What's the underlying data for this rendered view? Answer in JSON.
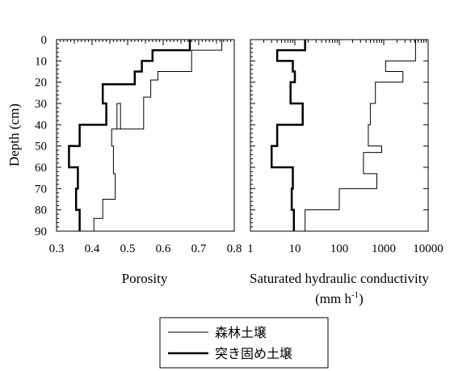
{
  "chart_data": [
    {
      "type": "line",
      "title": "",
      "xlabel": "Porosity",
      "ylabel": "Depth (cm)",
      "xscale": "linear",
      "xlim": [
        0.3,
        0.8
      ],
      "ylim": [
        90,
        0
      ],
      "x_ticks": [
        "0.3",
        "0.4",
        "0.5",
        "0.6",
        "0.7",
        "0.8"
      ],
      "y_ticks": [
        "0",
        "10",
        "20",
        "30",
        "40",
        "50",
        "60",
        "70",
        "80",
        "90"
      ],
      "series": [
        {
          "name": "森林土壌",
          "line": "thin",
          "points": [
            [
              0.765,
              0
            ],
            [
              0.765,
              5
            ],
            [
              0.68,
              5
            ],
            [
              0.68,
              15
            ],
            [
              0.585,
              15
            ],
            [
              0.585,
              19
            ],
            [
              0.565,
              19
            ],
            [
              0.565,
              27
            ],
            [
              0.545,
              27
            ],
            [
              0.545,
              42
            ],
            [
              0.47,
              42
            ],
            [
              0.47,
              30
            ],
            [
              0.48,
              30
            ],
            [
              0.48,
              42
            ],
            [
              0.455,
              42
            ],
            [
              0.455,
              50
            ],
            [
              0.46,
              50
            ],
            [
              0.46,
              63
            ],
            [
              0.465,
              63
            ],
            [
              0.465,
              75
            ],
            [
              0.43,
              75
            ],
            [
              0.43,
              84
            ],
            [
              0.405,
              84
            ],
            [
              0.405,
              90
            ]
          ]
        },
        {
          "name": "突き固め土壌",
          "line": "thick",
          "points": [
            [
              0.675,
              0
            ],
            [
              0.675,
              5
            ],
            [
              0.57,
              5
            ],
            [
              0.57,
              10
            ],
            [
              0.54,
              10
            ],
            [
              0.54,
              15
            ],
            [
              0.52,
              15
            ],
            [
              0.52,
              21
            ],
            [
              0.43,
              21
            ],
            [
              0.43,
              30
            ],
            [
              0.44,
              30
            ],
            [
              0.44,
              40
            ],
            [
              0.365,
              40
            ],
            [
              0.365,
              50
            ],
            [
              0.335,
              50
            ],
            [
              0.335,
              60
            ],
            [
              0.36,
              60
            ],
            [
              0.36,
              70
            ],
            [
              0.355,
              70
            ],
            [
              0.355,
              80
            ],
            [
              0.365,
              80
            ],
            [
              0.365,
              90
            ]
          ]
        }
      ]
    },
    {
      "type": "line",
      "title": "",
      "xlabel": "Saturated hydraulic conductivity",
      "xlabel_unit": "(mm h",
      "xlabel_unit_sup": "-1",
      "xlabel_unit_end": ")",
      "ylabel": "",
      "xscale": "log",
      "xlim": [
        1,
        10000
      ],
      "ylim": [
        90,
        0
      ],
      "x_ticks": [
        "1",
        "10",
        "100",
        "1000",
        "10000"
      ],
      "series": [
        {
          "name": "森林土壌",
          "line": "thin",
          "points": [
            [
              5200,
              0
            ],
            [
              5200,
              10
            ],
            [
              1100,
              10
            ],
            [
              1100,
              15
            ],
            [
              2700,
              15
            ],
            [
              2700,
              20
            ],
            [
              650,
              20
            ],
            [
              650,
              30
            ],
            [
              500,
              30
            ],
            [
              500,
              40
            ],
            [
              450,
              40
            ],
            [
              450,
              50
            ],
            [
              900,
              50
            ],
            [
              900,
              53
            ],
            [
              350,
              53
            ],
            [
              350,
              63
            ],
            [
              700,
              63
            ],
            [
              700,
              70
            ],
            [
              100,
              70
            ],
            [
              100,
              80
            ],
            [
              17,
              80
            ],
            [
              17,
              90
            ]
          ]
        },
        {
          "name": "突き固め土壌",
          "line": "thick",
          "points": [
            [
              17,
              0
            ],
            [
              17,
              5
            ],
            [
              4,
              5
            ],
            [
              4,
              10
            ],
            [
              9,
              10
            ],
            [
              9,
              15
            ],
            [
              10,
              15
            ],
            [
              10,
              20
            ],
            [
              8,
              20
            ],
            [
              8,
              30
            ],
            [
              15,
              30
            ],
            [
              15,
              40
            ],
            [
              4,
              40
            ],
            [
              4,
              50
            ],
            [
              3,
              50
            ],
            [
              3,
              60
            ],
            [
              9,
              60
            ],
            [
              9,
              70
            ],
            [
              8.5,
              70
            ],
            [
              8.5,
              80
            ],
            [
              9.5,
              80
            ],
            [
              9.5,
              90
            ]
          ]
        }
      ]
    }
  ],
  "legend": {
    "placement": "bottom-center",
    "items": [
      {
        "label": "森林土壌",
        "line": "thin"
      },
      {
        "label": "突き固め土壌",
        "line": "thick"
      }
    ]
  }
}
